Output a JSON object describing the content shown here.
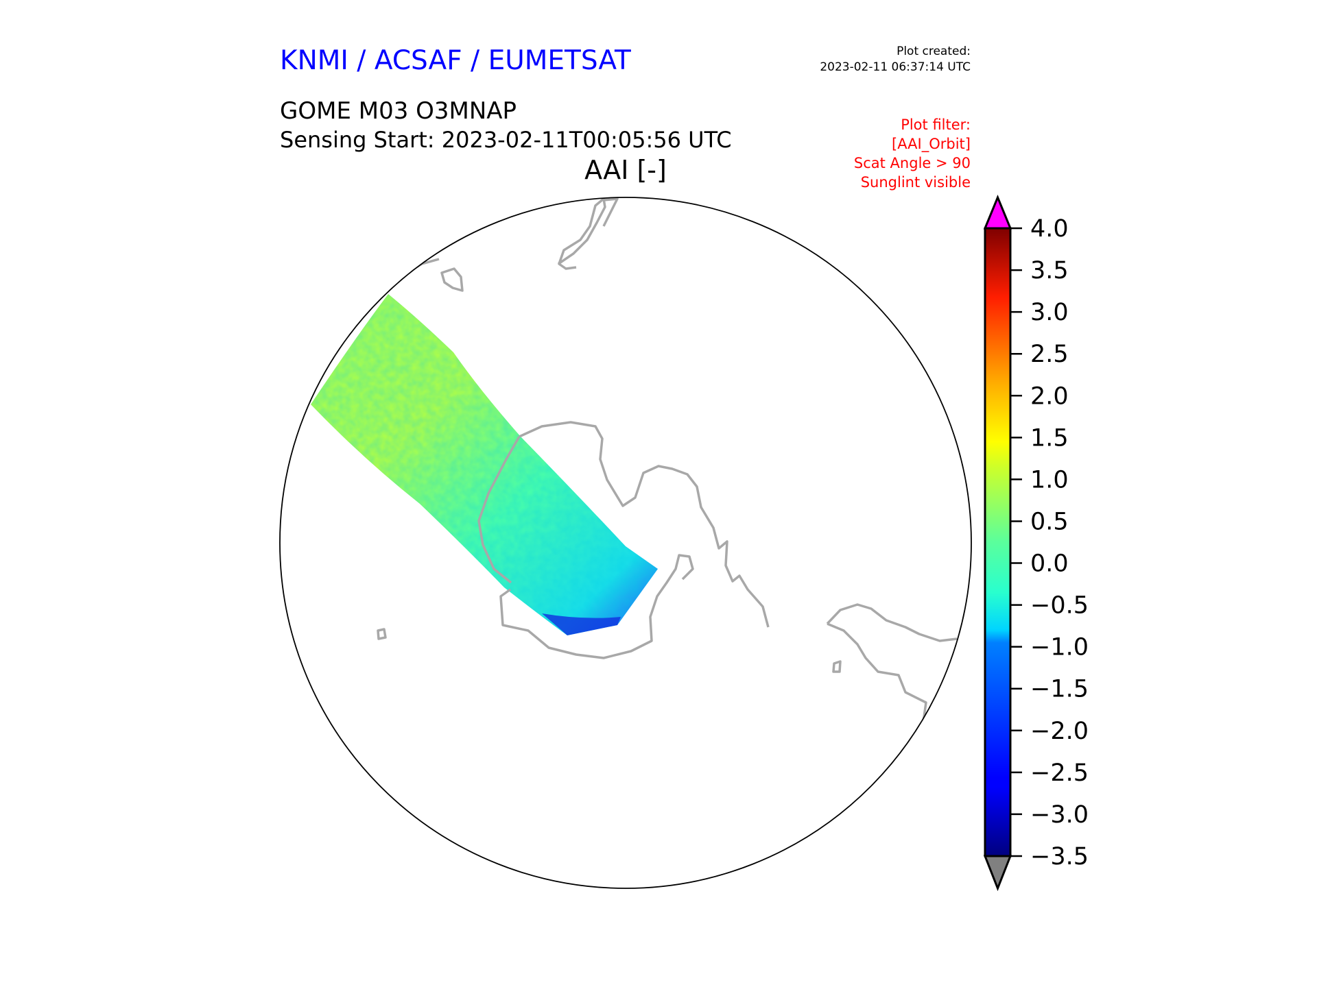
{
  "header": {
    "brand": "KNMI / ACSAF / EUMETSAT",
    "created_label": "Plot created:",
    "created_time": "2023-02-11 06:37:14 UTC",
    "product": "GOME M03 O3MNAP",
    "sensing": "Sensing Start: 2023-02-11T00:05:56 UTC",
    "filter_lines": [
      "Plot filter:",
      "[AAI_Orbit]",
      "Scat Angle > 90",
      "Sunglint visible"
    ]
  },
  "chart_data": {
    "type": "heatmap",
    "title": "AAI [-]",
    "projection": "south-polar-stereographic",
    "colormap": "jet",
    "colorbar": {
      "range": [
        -3.5,
        4.0
      ],
      "ticks": [
        4.0,
        3.5,
        3.0,
        2.5,
        2.0,
        1.5,
        1.0,
        0.5,
        0.0,
        -0.5,
        -1.0,
        -1.5,
        -2.0,
        -2.5,
        -3.0,
        -3.5
      ],
      "tick_labels": [
        "4.0",
        "3.5",
        "3.0",
        "2.5",
        "2.0",
        "1.5",
        "1.0",
        "0.5",
        "0.0",
        "−0.5",
        "−1.0",
        "−1.5",
        "−2.0",
        "−2.5",
        "−3.0",
        "−3.5"
      ],
      "over_color": "#ff00ff",
      "under_color": "#808080"
    },
    "swath_typical_range": [
      -1.5,
      1.5
    ]
  }
}
